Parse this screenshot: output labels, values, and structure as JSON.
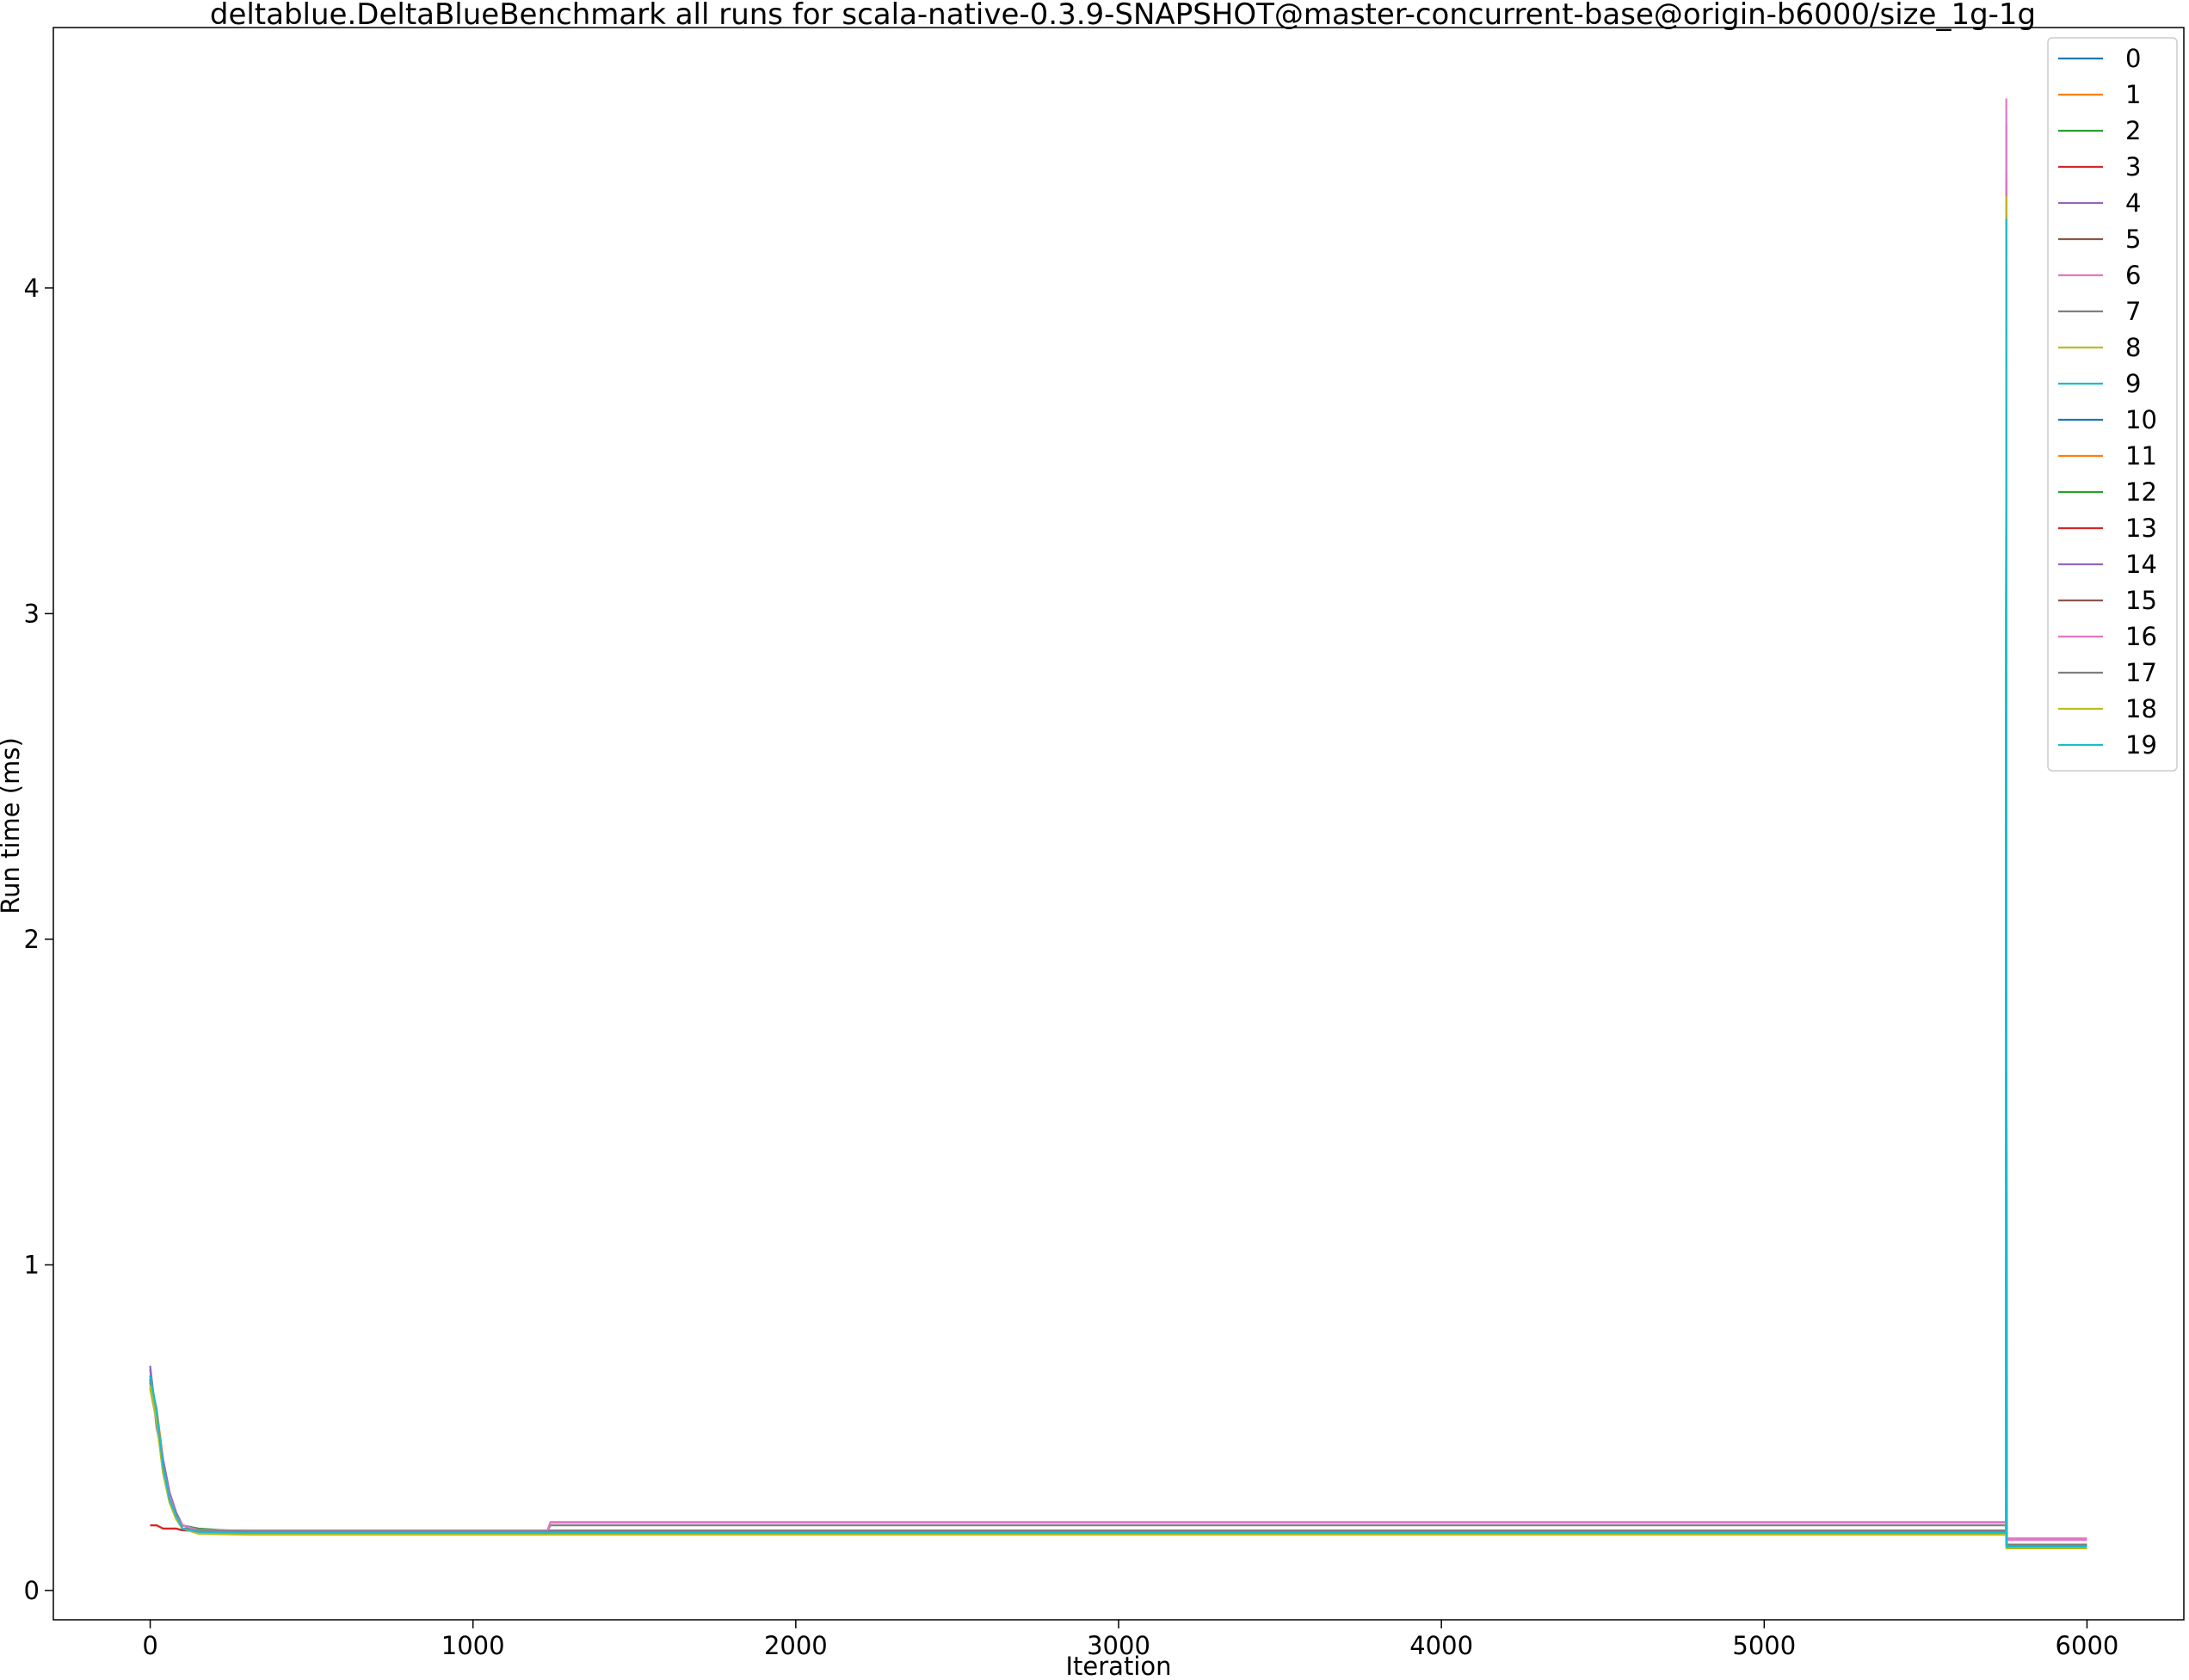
{
  "chart_data": {
    "type": "line",
    "title": "deltablue.DeltaBlueBenchmark all runs for scala-native-0.3.9-SNAPSHOT@master-concurrent-base@origin-b6000/size_1g-1g",
    "xlabel": "Iteration",
    "ylabel": "Run time (ms)",
    "xlim": [
      -300,
      6300
    ],
    "ylim": [
      -0.09,
      4.8
    ],
    "xticks": [
      0,
      1000,
      2000,
      3000,
      4000,
      5000,
      6000
    ],
    "yticks": [
      0,
      1,
      2,
      3,
      4
    ],
    "legend_position": "top-right",
    "grid": false,
    "spike_x": 5750,
    "series": [
      {
        "name": "0",
        "color": "#1f77b4",
        "x": [
          0,
          20,
          40,
          60,
          80,
          100,
          150,
          300,
          1000,
          2000,
          3000,
          4000,
          5000,
          5749,
          5750,
          5751,
          5800,
          6000
        ],
        "values": [
          0.66,
          0.55,
          0.38,
          0.28,
          0.23,
          0.19,
          0.185,
          0.182,
          0.182,
          0.182,
          0.182,
          0.182,
          0.182,
          0.182,
          4.22,
          0.14,
          0.135,
          0.135
        ]
      },
      {
        "name": "1",
        "color": "#ff7f0e",
        "x": [
          0,
          20,
          40,
          60,
          80,
          100,
          150,
          300,
          1000,
          2000,
          3000,
          4000,
          5000,
          5749,
          5750,
          5751,
          5800,
          6000
        ],
        "values": [
          0.64,
          0.56,
          0.4,
          0.3,
          0.24,
          0.2,
          0.18,
          0.178,
          0.178,
          0.178,
          0.178,
          0.178,
          0.178,
          0.178,
          4.25,
          0.13,
          0.13,
          0.13
        ]
      },
      {
        "name": "2",
        "color": "#2ca02c",
        "x": [
          0,
          20,
          40,
          60,
          80,
          100,
          150,
          300,
          1000,
          2000,
          3000,
          4000,
          5000,
          5749,
          5750,
          5751,
          5800,
          6000
        ],
        "values": [
          0.62,
          0.52,
          0.36,
          0.27,
          0.22,
          0.19,
          0.18,
          0.176,
          0.176,
          0.176,
          0.176,
          0.176,
          0.176,
          0.176,
          4.2,
          0.13,
          0.13,
          0.13
        ]
      },
      {
        "name": "3",
        "color": "#d62728",
        "x": [
          0,
          20,
          40,
          60,
          80,
          100,
          150,
          300,
          1000,
          2000,
          3000,
          4000,
          5000,
          5749,
          5750,
          5751,
          5800,
          6000
        ],
        "values": [
          0.2,
          0.2,
          0.19,
          0.19,
          0.19,
          0.185,
          0.182,
          0.18,
          0.18,
          0.18,
          0.18,
          0.18,
          0.18,
          0.18,
          4.35,
          0.14,
          0.14,
          0.14
        ]
      },
      {
        "name": "4",
        "color": "#9467bd",
        "x": [
          0,
          20,
          40,
          60,
          80,
          100,
          150,
          300,
          1000,
          2000,
          3000,
          4000,
          5000,
          5749,
          5750,
          5751,
          5800,
          6000
        ],
        "values": [
          0.68,
          0.5,
          0.4,
          0.3,
          0.24,
          0.2,
          0.185,
          0.183,
          0.183,
          0.183,
          0.183,
          0.183,
          0.183,
          0.183,
          4.3,
          0.14,
          0.14,
          0.14
        ]
      },
      {
        "name": "5",
        "color": "#8c564b",
        "x": [
          0,
          20,
          40,
          60,
          80,
          100,
          150,
          300,
          1000,
          2000,
          3000,
          4000,
          5000,
          5749,
          5750,
          5751,
          5800,
          6000
        ],
        "values": [
          0.65,
          0.54,
          0.37,
          0.28,
          0.23,
          0.19,
          0.184,
          0.181,
          0.181,
          0.181,
          0.181,
          0.181,
          0.181,
          0.181,
          4.32,
          0.14,
          0.14,
          0.14
        ]
      },
      {
        "name": "6",
        "color": "#e377c2",
        "x": [
          0,
          20,
          40,
          60,
          80,
          100,
          150,
          300,
          1000,
          1230,
          1240,
          2000,
          3000,
          4000,
          5000,
          5749,
          5750,
          5751,
          5800,
          6000
        ],
        "values": [
          0.63,
          0.53,
          0.38,
          0.29,
          0.23,
          0.2,
          0.185,
          0.183,
          0.183,
          0.183,
          0.21,
          0.21,
          0.21,
          0.21,
          0.21,
          0.21,
          4.58,
          0.16,
          0.16,
          0.16
        ]
      },
      {
        "name": "7",
        "color": "#7f7f7f",
        "x": [
          0,
          20,
          40,
          60,
          80,
          100,
          150,
          300,
          1000,
          1230,
          1240,
          2000,
          3000,
          4000,
          5000,
          5749,
          5750,
          5751,
          5800,
          6000
        ],
        "values": [
          0.64,
          0.54,
          0.38,
          0.28,
          0.23,
          0.19,
          0.184,
          0.182,
          0.182,
          0.182,
          0.2,
          0.2,
          0.2,
          0.2,
          0.2,
          0.2,
          4.24,
          0.14,
          0.14,
          0.14
        ]
      },
      {
        "name": "8",
        "color": "#bcbd22",
        "x": [
          0,
          20,
          40,
          60,
          80,
          100,
          150,
          300,
          1000,
          2000,
          3000,
          4000,
          5000,
          5749,
          5750,
          5751,
          5800,
          6000
        ],
        "values": [
          0.62,
          0.52,
          0.36,
          0.27,
          0.22,
          0.19,
          0.175,
          0.172,
          0.172,
          0.172,
          0.172,
          0.172,
          0.172,
          0.172,
          4.27,
          0.13,
          0.13,
          0.13
        ]
      },
      {
        "name": "9",
        "color": "#17becf",
        "x": [
          0,
          20,
          40,
          60,
          80,
          100,
          150,
          300,
          1000,
          2000,
          3000,
          4000,
          5000,
          5749,
          5750,
          5751,
          5800,
          6000
        ],
        "values": [
          0.66,
          0.55,
          0.38,
          0.28,
          0.23,
          0.19,
          0.18,
          0.178,
          0.178,
          0.178,
          0.178,
          0.178,
          0.178,
          0.178,
          4.22,
          0.135,
          0.135,
          0.135
        ]
      },
      {
        "name": "10",
        "color": "#1f77b4",
        "x": [
          0,
          20,
          40,
          60,
          80,
          100,
          150,
          300,
          1000,
          2000,
          3000,
          4000,
          5000,
          5749,
          5750,
          5751,
          5800,
          6000
        ],
        "values": [
          0.65,
          0.54,
          0.37,
          0.28,
          0.23,
          0.19,
          0.186,
          0.184,
          0.184,
          0.184,
          0.184,
          0.184,
          0.184,
          0.184,
          4.22,
          0.14,
          0.14,
          0.14
        ]
      },
      {
        "name": "11",
        "color": "#ff7f0e",
        "x": [
          0,
          20,
          40,
          60,
          80,
          100,
          150,
          300,
          1000,
          2000,
          3000,
          4000,
          5000,
          5749,
          5750,
          5751,
          5800,
          6000
        ],
        "values": [
          0.63,
          0.53,
          0.37,
          0.28,
          0.22,
          0.19,
          0.179,
          0.177,
          0.177,
          0.177,
          0.177,
          0.177,
          0.177,
          0.177,
          4.26,
          0.13,
          0.13,
          0.13
        ]
      },
      {
        "name": "12",
        "color": "#2ca02c",
        "x": [
          0,
          20,
          40,
          60,
          80,
          100,
          150,
          300,
          1000,
          2000,
          3000,
          4000,
          5000,
          5749,
          5750,
          5751,
          5800,
          6000
        ],
        "values": [
          0.64,
          0.53,
          0.37,
          0.28,
          0.23,
          0.2,
          0.19,
          0.18,
          0.18,
          0.18,
          0.18,
          0.18,
          0.18,
          0.18,
          4.21,
          0.13,
          0.13,
          0.13
        ]
      },
      {
        "name": "13",
        "color": "#d62728",
        "x": [
          0,
          20,
          40,
          60,
          80,
          100,
          150,
          300,
          1000,
          2000,
          3000,
          4000,
          5000,
          5749,
          5750,
          5751,
          5800,
          6000
        ],
        "values": [
          0.2,
          0.2,
          0.19,
          0.19,
          0.19,
          0.185,
          0.183,
          0.181,
          0.181,
          0.181,
          0.181,
          0.181,
          0.181,
          0.181,
          4.3,
          0.14,
          0.14,
          0.14
        ]
      },
      {
        "name": "14",
        "color": "#9467bd",
        "x": [
          0,
          20,
          40,
          60,
          80,
          100,
          150,
          300,
          1000,
          2000,
          3000,
          4000,
          5000,
          5749,
          5750,
          5751,
          5800,
          6000
        ],
        "values": [
          0.69,
          0.52,
          0.4,
          0.3,
          0.24,
          0.2,
          0.186,
          0.184,
          0.184,
          0.184,
          0.184,
          0.184,
          0.184,
          0.184,
          4.28,
          0.14,
          0.14,
          0.14
        ]
      },
      {
        "name": "15",
        "color": "#8c564b",
        "x": [
          0,
          20,
          40,
          60,
          80,
          100,
          150,
          300,
          1000,
          2000,
          3000,
          4000,
          5000,
          5749,
          5750,
          5751,
          5800,
          6000
        ],
        "values": [
          0.66,
          0.54,
          0.38,
          0.28,
          0.23,
          0.19,
          0.184,
          0.182,
          0.182,
          0.182,
          0.182,
          0.182,
          0.182,
          0.182,
          4.33,
          0.14,
          0.14,
          0.14
        ]
      },
      {
        "name": "16",
        "color": "#e377c2",
        "x": [
          0,
          20,
          40,
          60,
          80,
          100,
          150,
          300,
          1000,
          1230,
          1240,
          2000,
          3000,
          4000,
          5000,
          5749,
          5750,
          5751,
          5800,
          6000
        ],
        "values": [
          0.64,
          0.53,
          0.38,
          0.29,
          0.23,
          0.2,
          0.185,
          0.183,
          0.183,
          0.183,
          0.208,
          0.208,
          0.208,
          0.208,
          0.208,
          0.208,
          4.5,
          0.155,
          0.155,
          0.155
        ]
      },
      {
        "name": "17",
        "color": "#7f7f7f",
        "x": [
          0,
          20,
          40,
          60,
          80,
          100,
          150,
          300,
          1000,
          2000,
          3000,
          4000,
          5000,
          5749,
          5750,
          5751,
          5800,
          6000
        ],
        "values": [
          0.64,
          0.54,
          0.38,
          0.28,
          0.23,
          0.19,
          0.183,
          0.181,
          0.181,
          0.181,
          0.181,
          0.181,
          0.181,
          0.181,
          4.23,
          0.14,
          0.14,
          0.14
        ]
      },
      {
        "name": "18",
        "color": "#bcbd22",
        "x": [
          0,
          20,
          40,
          60,
          80,
          100,
          150,
          300,
          1000,
          2000,
          3000,
          4000,
          5000,
          5749,
          5750,
          5751,
          5800,
          6000
        ],
        "values": [
          0.63,
          0.52,
          0.36,
          0.27,
          0.22,
          0.19,
          0.174,
          0.171,
          0.171,
          0.171,
          0.171,
          0.171,
          0.171,
          0.171,
          4.28,
          0.13,
          0.13,
          0.13
        ]
      },
      {
        "name": "19",
        "color": "#17becf",
        "x": [
          0,
          20,
          40,
          60,
          80,
          100,
          150,
          300,
          1000,
          2000,
          3000,
          4000,
          5000,
          5749,
          5750,
          5751,
          5800,
          6000
        ],
        "values": [
          0.66,
          0.55,
          0.38,
          0.28,
          0.23,
          0.19,
          0.18,
          0.178,
          0.178,
          0.178,
          0.178,
          0.178,
          0.178,
          0.178,
          4.21,
          0.135,
          0.135,
          0.135
        ]
      }
    ]
  }
}
